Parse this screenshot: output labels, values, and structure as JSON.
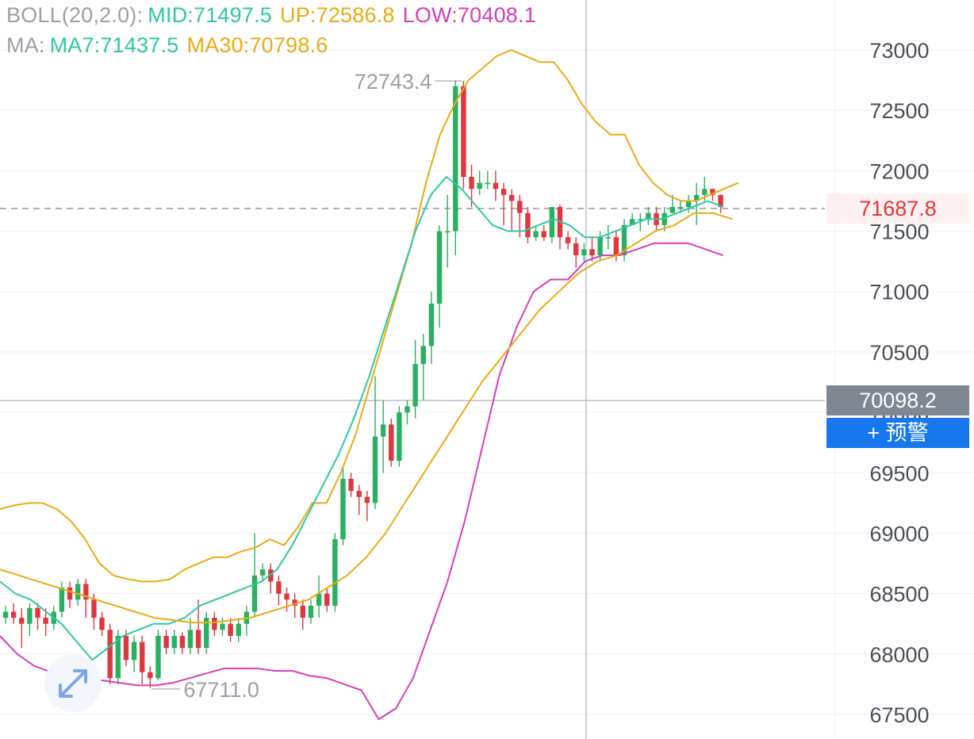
{
  "chart_data": {
    "type": "candlestick",
    "indicators": {
      "boll": {
        "label": "BOLL(20,2.0):",
        "mid": "MID:71497.5",
        "up": "UP:72586.8",
        "low": "LOW:70408.1"
      },
      "ma": {
        "label": "MA:",
        "ma7": "MA7:71437.5",
        "ma30": "MA30:70798.6"
      }
    },
    "y_ticks": [
      73000,
      72500,
      72000,
      71500,
      71000,
      70500,
      70000,
      69500,
      69000,
      68500,
      68000,
      67500
    ],
    "y_tick_labels": [
      "73000",
      "72500",
      "72000",
      "71500",
      "71000",
      "70500",
      "70000",
      "69500",
      "69000",
      "68500",
      "68000",
      "67500"
    ],
    "ylim": [
      67500,
      73000
    ],
    "current_price": 71687.8,
    "current_price_label": "71687.8",
    "crosshair_price": 70098.2,
    "crosshair_price_label": "70098.2",
    "high_marker": {
      "value": 72743.4,
      "label": "72743.4"
    },
    "low_marker": {
      "value": 67711.0,
      "label": "67711.0"
    },
    "alert_button_label": "+ 预警",
    "candles": [
      [
        68300,
        68350,
        68250,
        68400
      ],
      [
        68350,
        68300,
        68250,
        68420
      ],
      [
        68300,
        68250,
        68050,
        68380
      ],
      [
        68250,
        68380,
        68150,
        68420
      ],
      [
        68380,
        68300,
        68200,
        68420
      ],
      [
        68300,
        68250,
        68150,
        68380
      ],
      [
        68250,
        68350,
        68200,
        68400
      ],
      [
        68350,
        68550,
        68300,
        68600
      ],
      [
        68550,
        68450,
        68380,
        68600
      ],
      [
        68450,
        68580,
        68400,
        68620
      ],
      [
        68580,
        68450,
        68300,
        68620
      ],
      [
        68450,
        68300,
        68200,
        68500
      ],
      [
        68300,
        68200,
        68150,
        68350
      ],
      [
        68200,
        67800,
        67750,
        68250
      ],
      [
        67800,
        68150,
        67750,
        68200
      ],
      [
        68150,
        67950,
        67900,
        68200
      ],
      [
        67950,
        68100,
        67850,
        68150
      ],
      [
        68100,
        67850,
        67750,
        68150
      ],
      [
        67850,
        67800,
        67720,
        67900
      ],
      [
        67800,
        68150,
        67780,
        68200
      ],
      [
        68150,
        68050,
        68000,
        68200
      ],
      [
        68050,
        68150,
        68000,
        68200
      ],
      [
        68150,
        68050,
        68000,
        68180
      ],
      [
        68050,
        68200,
        68000,
        68300
      ],
      [
        68200,
        68050,
        68000,
        68450
      ],
      [
        68050,
        68300,
        68000,
        68350
      ],
      [
        68300,
        68200,
        68150,
        68350
      ],
      [
        68200,
        68250,
        68150,
        68300
      ],
      [
        68250,
        68150,
        68100,
        68300
      ],
      [
        68150,
        68250,
        68100,
        68300
      ],
      [
        68250,
        68350,
        68150,
        68400
      ],
      [
        68350,
        68650,
        68300,
        69000
      ],
      [
        68650,
        68700,
        68600,
        68750
      ],
      [
        68700,
        68600,
        68500,
        68750
      ],
      [
        68600,
        68500,
        68400,
        68650
      ],
      [
        68500,
        68450,
        68350,
        68550
      ],
      [
        68450,
        68400,
        68300,
        68500
      ],
      [
        68400,
        68300,
        68200,
        68450
      ],
      [
        68300,
        68400,
        68250,
        68450
      ],
      [
        68400,
        68500,
        68300,
        68650
      ],
      [
        68500,
        68400,
        68350,
        68550
      ],
      [
        68400,
        68950,
        68350,
        69000
      ],
      [
        68950,
        69450,
        68900,
        69550
      ],
      [
        69450,
        69350,
        69300,
        69500
      ],
      [
        69350,
        69300,
        69150,
        69400
      ],
      [
        69300,
        69250,
        69100,
        69350
      ],
      [
        69250,
        69800,
        69200,
        70300
      ],
      [
        69800,
        69900,
        69500,
        70100
      ],
      [
        69900,
        69600,
        69550,
        69950
      ],
      [
        69600,
        70000,
        69550,
        70050
      ],
      [
        70000,
        70050,
        69900,
        70100
      ],
      [
        70050,
        70400,
        69950,
        70600
      ],
      [
        70400,
        70550,
        70100,
        70650
      ],
      [
        70550,
        70900,
        70400,
        71000
      ],
      [
        70900,
        71500,
        70700,
        71550
      ],
      [
        71500,
        71500,
        71200,
        71800
      ],
      [
        71500,
        72700,
        71300,
        72750
      ],
      [
        72700,
        71950,
        71850,
        72743.4
      ],
      [
        71950,
        71850,
        71700,
        72050
      ],
      [
        71850,
        71900,
        71800,
        72000
      ],
      [
        71900,
        71900,
        71850,
        72000
      ],
      [
        71900,
        71850,
        71750,
        72000
      ],
      [
        71850,
        71800,
        71550,
        71900
      ],
      [
        71800,
        71750,
        71500,
        71850
      ],
      [
        71750,
        71650,
        71450,
        71800
      ],
      [
        71650,
        71450,
        71400,
        71700
      ],
      [
        71450,
        71500,
        71420,
        71550
      ],
      [
        71500,
        71450,
        71420,
        71550
      ],
      [
        71450,
        71700,
        71400,
        71700
      ],
      [
        71700,
        71450,
        71350,
        71720
      ],
      [
        71450,
        71400,
        71350,
        71500
      ],
      [
        71400,
        71300,
        71200,
        71450
      ],
      [
        71300,
        71350,
        71250,
        71400
      ],
      [
        71350,
        71300,
        71250,
        71450
      ],
      [
        71300,
        71450,
        71250,
        71500
      ],
      [
        71450,
        71450,
        71350,
        71550
      ],
      [
        71450,
        71300,
        71250,
        71500
      ],
      [
        71300,
        71550,
        71250,
        71600
      ],
      [
        71550,
        71600,
        71550,
        71650
      ],
      [
        71600,
        71600,
        71500,
        71650
      ],
      [
        71600,
        71650,
        71550,
        71700
      ],
      [
        71650,
        71550,
        71500,
        71700
      ],
      [
        71550,
        71650,
        71500,
        71700
      ],
      [
        71650,
        71700,
        71650,
        71800
      ],
      [
        71700,
        71700,
        71650,
        71750
      ],
      [
        71700,
        71750,
        71650,
        71800
      ],
      [
        71750,
        71800,
        71550,
        71900
      ],
      [
        71800,
        71850,
        71750,
        71950
      ],
      [
        71850,
        71800,
        71750,
        71850
      ],
      [
        71800,
        71700,
        71650,
        71800
      ]
    ],
    "series": [
      {
        "key": "boll_up",
        "color": "#e9ab12",
        "values": [
          69200,
          69230,
          69250,
          69250,
          69200,
          69100,
          68950,
          68750,
          68650,
          68620,
          68600,
          68600,
          68620,
          68700,
          68750,
          68800,
          68800,
          68850,
          68880,
          68950,
          68900,
          69050,
          69250,
          69250,
          69500,
          69800,
          70200,
          70600,
          71000,
          71400,
          71900,
          72300,
          72550,
          72750,
          72850,
          72950,
          73000,
          72950,
          72900,
          72900,
          72750,
          72550,
          72400,
          72300,
          72300,
          72050,
          71900,
          71800,
          71750,
          71750,
          71800,
          71850,
          71900
        ]
      },
      {
        "key": "boll_low",
        "color": "#d63fb6",
        "values": [
          68150,
          68000,
          67900,
          67850,
          67800,
          67800,
          67780,
          67760,
          67740,
          67740,
          67760,
          67800,
          67840,
          67880,
          67880,
          67880,
          67860,
          67860,
          67820,
          67800,
          67750,
          67700,
          67460,
          67550,
          67800,
          68200,
          68600,
          69100,
          69700,
          70300,
          70700,
          71000,
          71100,
          71100,
          71250,
          71300,
          71300,
          71350,
          71400,
          71400,
          71400,
          71350,
          71300
        ]
      },
      {
        "key": "ma7",
        "color": "#2cc9a3",
        "values": [
          68600,
          68500,
          68450,
          68350,
          68250,
          68100,
          67950,
          68050,
          68150,
          68200,
          68250,
          68250,
          68300,
          68400,
          68450,
          68500,
          68550,
          68600,
          68700,
          68900,
          69150,
          69400,
          69650,
          69950,
          70300,
          70700,
          71100,
          71500,
          71800,
          71950,
          71850,
          71700,
          71550,
          71500,
          71500,
          71550,
          71600,
          71550,
          71450,
          71450,
          71500,
          71550,
          71600,
          71600,
          71650,
          71700,
          71750,
          71700
        ]
      },
      {
        "key": "ma30",
        "color": "#e9ab12",
        "values": [
          68700,
          68650,
          68600,
          68550,
          68500,
          68450,
          68400,
          68350,
          68300,
          68280,
          68260,
          68260,
          68280,
          68300,
          68350,
          68400,
          68450,
          68550,
          68650,
          68800,
          69000,
          69250,
          69500,
          69750,
          70000,
          70250,
          70450,
          70650,
          70850,
          71000,
          71150,
          71250,
          71300,
          71400,
          71500,
          71550,
          71650,
          71650,
          71600
        ]
      }
    ]
  }
}
